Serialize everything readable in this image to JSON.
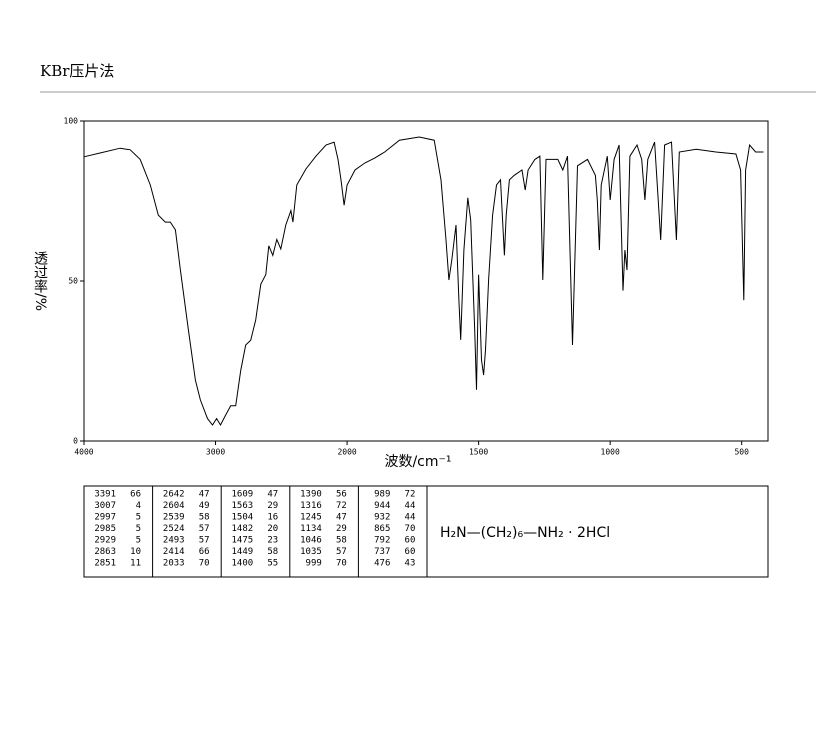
{
  "header": {
    "title": "KBr压片法"
  },
  "chart_data": {
    "type": "line",
    "ylabel": "透过率/%",
    "xlabel": "波数/cm⁻¹",
    "x": [
      4000,
      3878,
      3725,
      3649,
      3573,
      3496,
      3435,
      3382,
      3344,
      3305,
      3267,
      3206,
      3153,
      3115,
      3061,
      3023,
      2992,
      2962,
      2924,
      2885,
      2847,
      2809,
      2771,
      2733,
      2695,
      2656,
      2618,
      2595,
      2565,
      2534,
      2504,
      2466,
      2427,
      2412,
      2382,
      2313,
      2237,
      2160,
      2099,
      2069,
      2046,
      2023,
      2000,
      1970,
      1932,
      1895,
      1857,
      1801,
      1726,
      1669,
      1643,
      1624,
      1613,
      1602,
      1586,
      1575,
      1568,
      1556,
      1541,
      1530,
      1515,
      1508,
      1500,
      1489,
      1481,
      1474,
      1462,
      1447,
      1432,
      1417,
      1402,
      1395,
      1383,
      1365,
      1335,
      1323,
      1312,
      1286,
      1267,
      1256,
      1244,
      1199,
      1180,
      1162,
      1143,
      1124,
      1086,
      1056,
      1049,
      1041,
      1034,
      1011,
      1000,
      985,
      966,
      951,
      944,
      936,
      925,
      898,
      880,
      868,
      857,
      831,
      808,
      793,
      767,
      748,
      737,
      673,
      598,
      522,
      504,
      492,
      485,
      470,
      447,
      417
    ],
    "values": [
      88.8,
      90,
      91.5,
      91,
      88,
      80,
      70.6,
      68.4,
      68.4,
      66,
      53.4,
      34.7,
      19,
      12.8,
      7,
      5,
      7,
      5,
      8,
      11,
      11,
      22,
      30,
      31.5,
      37.8,
      49,
      52,
      61,
      58,
      63,
      60,
      67.5,
      72,
      68.4,
      80,
      85,
      89,
      92.5,
      93.4,
      88,
      81.6,
      73.7,
      80,
      84.7,
      86.9,
      88.4,
      90.3,
      94,
      95,
      94,
      81.6,
      62.8,
      50.3,
      56.6,
      67.5,
      44,
      31.6,
      59.7,
      76,
      69,
      34.7,
      16,
      52,
      25.3,
      20.6,
      28.4,
      50.3,
      70.6,
      80,
      81.6,
      58,
      70.6,
      81.6,
      83,
      84.7,
      78.4,
      84.7,
      88,
      89,
      50.3,
      88,
      88,
      84.7,
      89,
      30,
      86,
      88,
      83,
      75.3,
      59.7,
      80,
      89,
      75.3,
      88,
      92.5,
      47,
      59.7,
      53.4,
      89,
      92.5,
      88,
      75.3,
      88,
      93.4,
      62.8,
      92.5,
      93.4,
      62.8,
      90.3,
      91.2,
      90.3,
      89.7,
      84.7,
      44,
      84.7,
      92.5,
      90.3,
      90.3
    ],
    "color": "#000000",
    "xlim": [
      4000,
      400
    ],
    "xticks": [
      4000,
      3000,
      2000,
      1500,
      1000,
      500
    ],
    "ylim": [
      0,
      100
    ],
    "yticks": [
      0,
      50,
      100
    ]
  },
  "table": {
    "columns": [
      [
        [
          3391,
          66
        ],
        [
          3007,
          4
        ],
        [
          2997,
          5
        ],
        [
          2985,
          5
        ],
        [
          2929,
          5
        ],
        [
          2863,
          10
        ],
        [
          2851,
          11
        ]
      ],
      [
        [
          2642,
          47
        ],
        [
          2604,
          49
        ],
        [
          2539,
          58
        ],
        [
          2524,
          57
        ],
        [
          2493,
          57
        ],
        [
          2414,
          66
        ],
        [
          2033,
          70
        ]
      ],
      [
        [
          1609,
          47
        ],
        [
          1563,
          29
        ],
        [
          1504,
          16
        ],
        [
          1482,
          20
        ],
        [
          1475,
          23
        ],
        [
          1449,
          58
        ],
        [
          1400,
          55
        ]
      ],
      [
        [
          1390,
          56
        ],
        [
          1316,
          72
        ],
        [
          1245,
          47
        ],
        [
          1134,
          29
        ],
        [
          1046,
          58
        ],
        [
          1035,
          57
        ],
        [
          999,
          70
        ]
      ],
      [
        [
          989,
          72
        ],
        [
          944,
          44
        ],
        [
          932,
          44
        ],
        [
          865,
          70
        ],
        [
          792,
          60
        ],
        [
          737,
          60
        ],
        [
          476,
          43
        ]
      ]
    ]
  },
  "formula": "H₂N—(CH₂)₆—NH₂  ·  2HCl"
}
